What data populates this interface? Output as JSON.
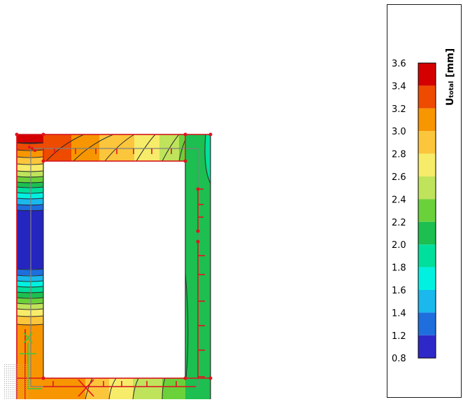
{
  "legend": {
    "title_main": "U",
    "title_sub": "total",
    "title_unit": " [mm]",
    "levels": [
      {
        "label": "3.6",
        "color": "#d40000"
      },
      {
        "label": "3.4",
        "color": "#ee4a00"
      },
      {
        "label": "3.2",
        "color": "#f79600"
      },
      {
        "label": "3.0",
        "color": "#fbc63c"
      },
      {
        "label": "2.8",
        "color": "#f7ec6a"
      },
      {
        "label": "2.6",
        "color": "#bfe35b"
      },
      {
        "label": "2.4",
        "color": "#6bd13a"
      },
      {
        "label": "2.2",
        "color": "#1cbf50"
      },
      {
        "label": "2.0",
        "color": "#00df9b"
      },
      {
        "label": "1.8",
        "color": "#00f1e0"
      },
      {
        "label": "1.6",
        "color": "#1ab8ec"
      },
      {
        "label": "1.4",
        "color": "#1e6ede"
      },
      {
        "label": "1.2",
        "color": "#2f28c8"
      },
      {
        "label": "0.8",
        "color": null
      }
    ]
  },
  "colors": {
    "frame_outline": "#2b2b2b",
    "support_marks": "#e0141e",
    "deep_blue": "#2525c0",
    "selection_green": "#3cc83c"
  }
}
